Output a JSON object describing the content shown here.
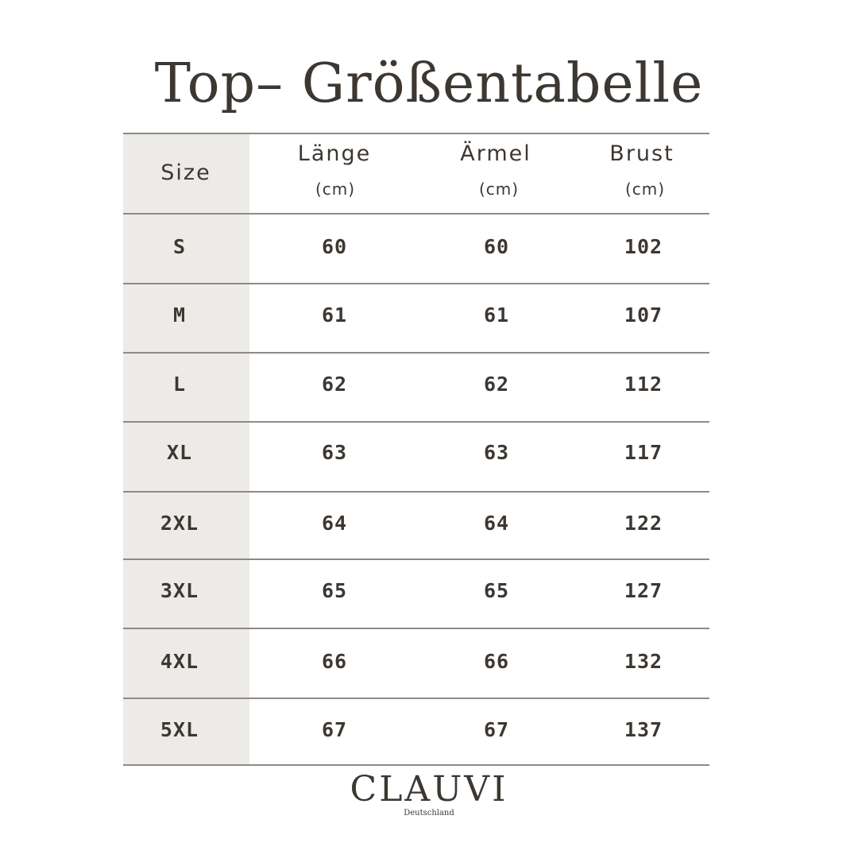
{
  "title": "Top– Größentabelle",
  "headers": {
    "size": "Size",
    "laenge": "Länge",
    "aermel": "Ärmel",
    "brust": "Brust",
    "unit": "(cm)"
  },
  "rows": [
    {
      "size": "S",
      "laenge": "60",
      "aermel": "60",
      "brust": "102"
    },
    {
      "size": "M",
      "laenge": "61",
      "aermel": "61",
      "brust": "107"
    },
    {
      "size": "L",
      "laenge": "62",
      "aermel": "62",
      "brust": "112"
    },
    {
      "size": "XL",
      "laenge": "63",
      "aermel": "63",
      "brust": "117"
    },
    {
      "size": "2XL",
      "laenge": "64",
      "aermel": "64",
      "brust": "122"
    },
    {
      "size": "3XL",
      "laenge": "65",
      "aermel": "65",
      "brust": "127"
    },
    {
      "size": "4XL",
      "laenge": "66",
      "aermel": "66",
      "brust": "132"
    },
    {
      "size": "5XL",
      "laenge": "67",
      "aermel": "67",
      "brust": "137"
    }
  ],
  "brand": {
    "name": "CLAUVI",
    "subtitle": "Deutschland"
  },
  "colors": {
    "text": "#3d3732",
    "size_column": "#ecebe7",
    "rule": "#8f8a86"
  }
}
